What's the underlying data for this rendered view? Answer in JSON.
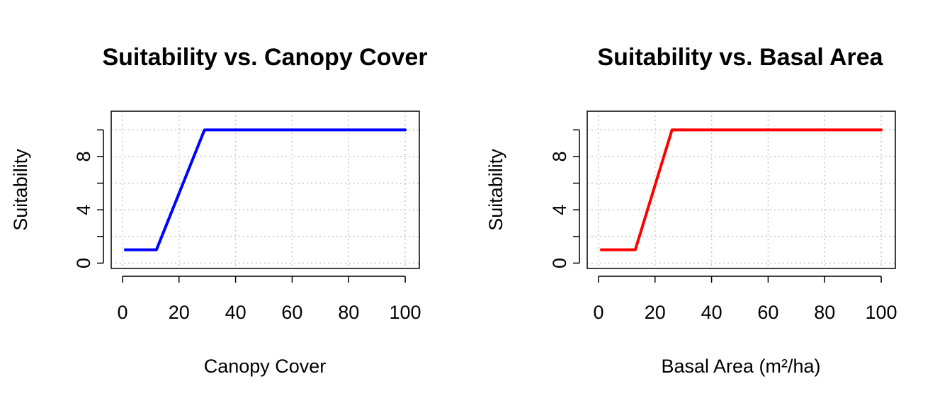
{
  "chart_data": [
    {
      "type": "line",
      "title": "Suitability vs. Canopy Cover",
      "xlabel": "Canopy Cover",
      "ylabel": "Suitability",
      "xlim": [
        -4,
        105
      ],
      "ylim": [
        -0.4,
        11.4
      ],
      "x_ticks": [
        0,
        20,
        40,
        60,
        80,
        100
      ],
      "y_ticks": [
        0,
        2,
        4,
        6,
        8,
        10
      ],
      "y_tick_labels": [
        "0",
        "",
        "4",
        "",
        "8",
        ""
      ],
      "grid": true,
      "series": [
        {
          "color": "#0000ff",
          "x": [
            1,
            12,
            29,
            100
          ],
          "y": [
            1,
            1,
            10,
            10
          ]
        }
      ]
    },
    {
      "type": "line",
      "title": "Suitability vs. Basal Area",
      "xlabel": "Basal Area (m²/ha)",
      "ylabel": "Suitability",
      "xlim": [
        -4,
        105
      ],
      "ylim": [
        -0.4,
        11.4
      ],
      "x_ticks": [
        0,
        20,
        40,
        60,
        80,
        100
      ],
      "y_ticks": [
        0,
        2,
        4,
        6,
        8,
        10
      ],
      "y_tick_labels": [
        "0",
        "",
        "4",
        "",
        "8",
        ""
      ],
      "grid": true,
      "series": [
        {
          "color": "#ff0000",
          "x": [
            1,
            13,
            26,
            100
          ],
          "y": [
            1,
            1,
            10,
            10
          ]
        }
      ]
    }
  ]
}
